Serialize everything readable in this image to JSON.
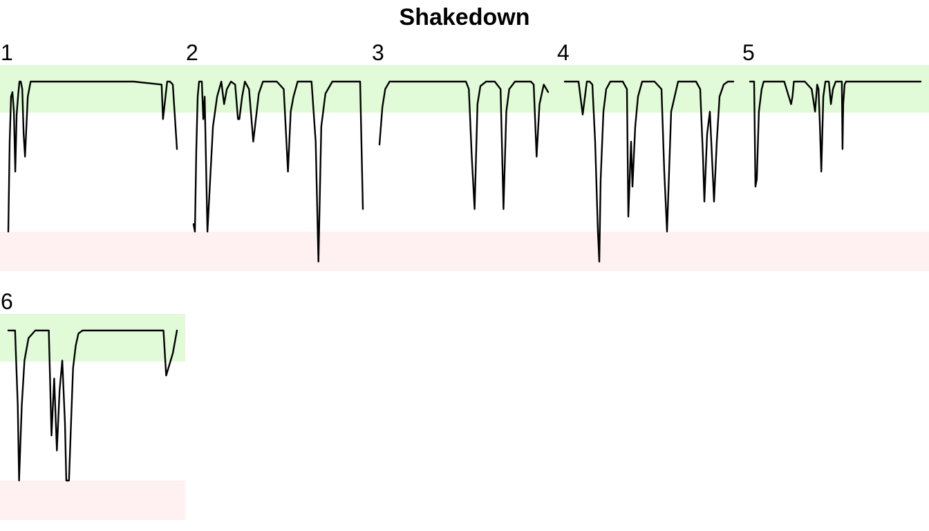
{
  "chart_data": {
    "type": "line",
    "title": "Shakedown",
    "colors": {
      "good_band": "#e1fad7",
      "bad_band": "#fff0f2",
      "line": "#000000"
    },
    "bands": {
      "good": [
        0.83,
        1.0
      ],
      "bad": [
        -0.3,
        0.0
      ]
    },
    "ylim": [
      -0.3,
      1.1
    ],
    "panels": [
      {
        "label": "1",
        "x": [
          0,
          1,
          2,
          3,
          4,
          5,
          6,
          7,
          8,
          9,
          10,
          11,
          12,
          14,
          16,
          20,
          30,
          60,
          90,
          110,
          111,
          113,
          114,
          116,
          118,
          121
        ],
        "values": [
          0.0,
          0.6,
          0.9,
          0.93,
          0.8,
          0.4,
          0.78,
          0.9,
          1.0,
          1.0,
          0.95,
          0.65,
          0.5,
          0.9,
          1.0,
          1.0,
          1.0,
          1.0,
          1.0,
          0.98,
          0.75,
          0.92,
          1.0,
          1.0,
          0.98,
          0.55
        ]
      },
      {
        "label": "2",
        "x": [
          0,
          1,
          2,
          3,
          4,
          6,
          7,
          8,
          10,
          12,
          14,
          17,
          20,
          22,
          24,
          27,
          30,
          32,
          33,
          35,
          37,
          40,
          43,
          47,
          50,
          55,
          60,
          65,
          68,
          70,
          72,
          75,
          80,
          85,
          88,
          90,
          92,
          95,
          100,
          110,
          118,
          120,
          122
        ],
        "values": [
          0.05,
          0.0,
          0.55,
          0.9,
          1.0,
          1.0,
          0.75,
          0.9,
          0.0,
          0.35,
          0.7,
          0.9,
          1.0,
          0.85,
          0.95,
          1.0,
          0.98,
          0.75,
          0.75,
          0.9,
          1.0,
          0.95,
          0.6,
          0.92,
          1.0,
          1.0,
          1.0,
          0.95,
          0.4,
          0.8,
          0.9,
          1.0,
          1.0,
          1.0,
          0.6,
          -0.2,
          0.7,
          0.92,
          1.0,
          1.0,
          1.0,
          1.0,
          0.15
        ]
      },
      {
        "label": "3",
        "x": [
          0,
          2,
          4,
          7,
          10,
          20,
          40,
          60,
          62,
          64,
          66,
          68,
          70,
          74,
          80,
          84,
          86,
          88,
          90,
          94,
          100,
          105,
          107,
          109,
          111,
          114,
          117
        ],
        "values": [
          0.58,
          0.83,
          0.95,
          1.0,
          1.0,
          1.0,
          1.0,
          1.0,
          0.95,
          0.5,
          0.15,
          0.85,
          0.97,
          1.0,
          1.0,
          0.95,
          0.15,
          0.8,
          0.95,
          1.0,
          1.0,
          1.0,
          0.98,
          0.5,
          0.85,
          0.98,
          0.93
        ]
      },
      {
        "label": "4",
        "x": [
          0,
          5,
          10,
          13,
          16,
          18,
          20,
          22,
          24,
          25,
          26,
          28,
          30,
          33,
          36,
          40,
          42,
          45,
          46,
          48,
          49,
          51,
          53,
          56,
          60,
          65,
          70,
          72,
          74,
          77,
          82,
          86,
          90,
          95,
          98,
          100,
          101,
          103,
          105,
          108,
          110,
          112,
          115,
          118,
          122
        ],
        "values": [
          1.0,
          1.0,
          1.0,
          0.78,
          1.0,
          1.0,
          0.98,
          0.6,
          0.0,
          -0.2,
          0.35,
          0.8,
          0.95,
          1.0,
          1.0,
          1.0,
          1.0,
          0.95,
          0.1,
          0.6,
          0.3,
          0.7,
          0.9,
          1.0,
          1.0,
          1.0,
          0.95,
          0.4,
          0.0,
          0.8,
          1.0,
          1.0,
          1.0,
          1.0,
          0.95,
          0.5,
          0.2,
          0.65,
          0.8,
          0.2,
          0.6,
          0.9,
          0.98,
          1.0,
          1.0
        ]
      },
      {
        "label": "5",
        "x": [
          0,
          5,
          6,
          8,
          10,
          13,
          17,
          20,
          25,
          30,
          40,
          50,
          60,
          62,
          64,
          67,
          70,
          80,
          90,
          95,
          98,
          100,
          102,
          104,
          107,
          110,
          111,
          112,
          113,
          115,
          118,
          121,
          125,
          128,
          131,
          134,
          135,
          136,
          138,
          140,
          143,
          145,
          147,
          150,
          153,
          156,
          159,
          162,
          165,
          168,
          171,
          174,
          177,
          180,
          183,
          186,
          189,
          192,
          195,
          198,
          201,
          204,
          207,
          210,
          213,
          216,
          219,
          222,
          225,
          228,
          231,
          234,
          237,
          240,
          243,
          246,
          249
        ],
        "values": [
          1.0,
          1.0,
          1.0,
          0.3,
          0.35,
          0.8,
          0.95,
          1.0,
          1.0,
          1.0,
          1.0,
          1.0,
          0.85,
          0.9,
          1.0,
          1.0,
          1.0,
          1.0,
          0.95,
          0.8,
          0.98,
          0.95,
          0.7,
          0.4,
          0.9,
          1.0,
          1.0,
          1.0,
          1.0,
          1.0,
          0.85,
          0.95,
          1.0,
          1.0,
          1.0,
          1.0,
          0.55,
          0.85,
          0.98,
          1.0,
          1.0,
          1.0,
          1.0,
          1.0,
          1.0,
          1.0,
          1.0,
          1.0,
          1.0,
          1.0,
          1.0,
          1.0,
          1.0,
          1.0,
          1.0,
          1.0,
          1.0,
          1.0,
          1.0,
          1.0,
          1.0,
          1.0,
          1.0,
          1.0,
          1.0,
          1.0,
          1.0,
          1.0,
          1.0,
          1.0,
          1.0,
          1.0,
          1.0,
          1.0,
          1.0,
          1.0,
          1.0
        ]
      },
      {
        "label": "6",
        "x": [
          0,
          3,
          5,
          7,
          8,
          10,
          12,
          15,
          20,
          25,
          30,
          32,
          34,
          36,
          38,
          40,
          42,
          43,
          45,
          47,
          48,
          50,
          52,
          55,
          60,
          70,
          80,
          100,
          110,
          115,
          117,
          122,
          125
        ],
        "values": [
          1.0,
          1.0,
          1.0,
          0.5,
          0.0,
          0.5,
          0.8,
          0.95,
          1.0,
          1.0,
          1.0,
          0.3,
          0.68,
          0.2,
          0.6,
          0.8,
          0.38,
          0.0,
          0.0,
          0.5,
          0.75,
          0.9,
          0.98,
          1.0,
          1.0,
          1.0,
          1.0,
          1.0,
          1.0,
          1.0,
          0.7,
          0.85,
          1.0
        ]
      }
    ]
  }
}
